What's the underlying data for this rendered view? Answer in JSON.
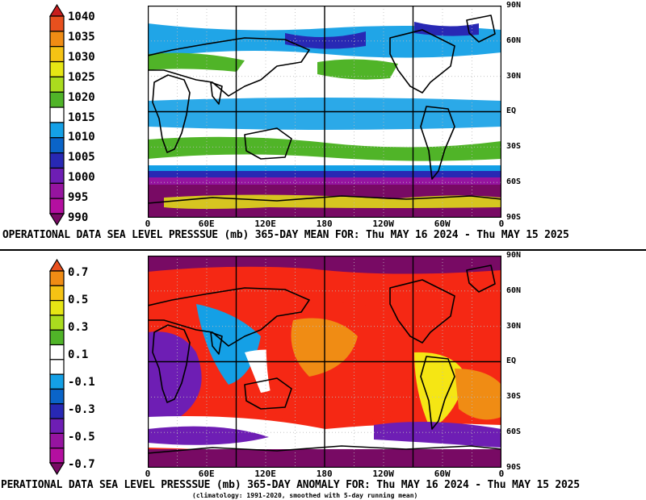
{
  "top": {
    "caption": "OPERATIONAL DATA  SEA LEVEL PRESSSUE (mb) 365-DAY MEAN FOR: Thu MAY 16 2024 - Thu MAY 15 2025",
    "colorbar_labels": [
      "1040",
      "1035",
      "1030",
      "1025",
      "1020",
      "1015",
      "1010",
      "1005",
      "1000",
      "995",
      "990"
    ],
    "colorbar_colors": [
      "#c81e1e",
      "#e8501e",
      "#f08c14",
      "#f5c314",
      "#e6e614",
      "#aadc1e",
      "#50b428",
      "#ffffff",
      "#14a0e6",
      "#0a64c8",
      "#2828b4",
      "#6e1eb4",
      "#9614a0",
      "#b40fa0",
      "#780a64"
    ],
    "map_colors": {
      "base": "#ffffff",
      "band_a": "#14a0e6",
      "band_b": "#50b428",
      "band_c": "#9614a0",
      "band_d": "#780a64",
      "band_e": "#2828b4",
      "band_f": "#e6e614"
    }
  },
  "bottom": {
    "caption": "PERATIONAL DATA  SEA LEVEL PRESSSUE (mb) 365-DAY ANOMALY FOR: Thu MAY 16 2024 - Thu MAY 15 2025",
    "subcaption": "(climatology: 1991-2020, smoothed with 5-day running mean)",
    "colorbar_labels": [
      "0.7",
      "0.5",
      "0.3",
      "0.1",
      "-0.1",
      "-0.3",
      "-0.5",
      "-0.7"
    ],
    "colorbar_colors": [
      "#e8501e",
      "#f08c14",
      "#f5c314",
      "#e6e614",
      "#aadc1e",
      "#50b428",
      "#ffffff",
      "#ffffff",
      "#14a0e6",
      "#0a64c8",
      "#2828b4",
      "#6e1eb4",
      "#9614a0",
      "#b40fa0",
      "#780a64"
    ],
    "map_colors": {
      "base": "#f52814",
      "orange": "#f08c14",
      "yellow": "#f5e614",
      "white": "#ffffff",
      "blue": "#14a0e6",
      "purple": "#6e1eb4",
      "dark": "#780a64"
    }
  },
  "axes": {
    "lon_labels": [
      "0",
      "60E",
      "120E",
      "180",
      "120W",
      "60W",
      "0"
    ],
    "lat_labels": [
      "90N",
      "60N",
      "30N",
      "EQ",
      "30S",
      "60S",
      "90S"
    ]
  }
}
